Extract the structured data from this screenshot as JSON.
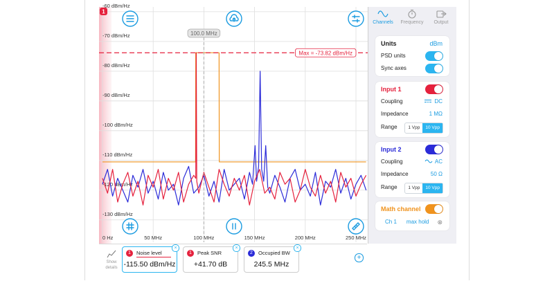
{
  "chart_data": {
    "type": "line",
    "channel_badge": "1",
    "xlim": [
      -3.4,
      261.6
    ],
    "ylim": [
      -137.5,
      -58.4
    ],
    "xticks": [
      {
        "value": 0,
        "label": "0 Hz"
      },
      {
        "value": 50,
        "label": "50 MHz"
      },
      {
        "value": 100,
        "label": "100 MHz"
      },
      {
        "value": 150,
        "label": "150 MHz"
      },
      {
        "value": 200,
        "label": "200 MHz"
      },
      {
        "value": 250,
        "label": "250 MHz"
      }
    ],
    "yticks": [
      {
        "value": -60,
        "label": "-60 dBm/Hz"
      },
      {
        "value": -70,
        "label": "-70 dBm/Hz"
      },
      {
        "value": -80,
        "label": "-80 dBm/Hz"
      },
      {
        "value": -90,
        "label": "-90 dBm/Hz"
      },
      {
        "value": -100,
        "label": "-100 dBm/Hz"
      },
      {
        "value": -110,
        "label": "-110 dBm/Hz"
      },
      {
        "value": -120,
        "label": "-120 dBm/Hz"
      },
      {
        "value": -130,
        "label": "-130 dBm/Hz"
      }
    ],
    "grid": true,
    "series": [
      {
        "color": "#f0931e",
        "x": [
          0,
          91.8,
          92,
          115,
          115.2,
          260
        ],
        "values": [
          -110.5,
          -110.5,
          -73.8,
          -73.8,
          -110.5,
          -110.5
        ]
      },
      {
        "color": "#2b2bd8",
        "x": [
          0,
          5,
          10,
          15,
          20,
          25,
          30,
          35,
          40,
          45,
          50,
          55,
          60,
          65,
          70,
          75,
          80,
          85,
          90,
          95,
          100,
          105,
          110,
          115,
          120,
          125,
          130,
          135,
          140,
          145,
          148,
          150.5,
          152,
          154,
          155.5,
          157,
          159,
          161,
          163,
          165,
          170,
          175,
          180,
          185,
          190,
          195,
          200,
          205,
          210,
          215,
          220,
          225,
          230,
          235,
          240,
          245,
          250,
          255,
          260
        ],
        "values": [
          -118,
          -113,
          -122,
          -116,
          -120,
          -124,
          -115,
          -119,
          -113,
          -121,
          -117,
          -123,
          -114,
          -120,
          -118,
          -125,
          -116,
          -112,
          -121,
          -119,
          -115,
          -122,
          -117,
          -124,
          -113,
          -120,
          -118,
          -116,
          -123,
          -114,
          -118,
          -105,
          -117,
          -112,
          -80,
          -113,
          -117,
          -105,
          -119,
          -121,
          -115,
          -119,
          -124,
          -116,
          -113,
          -120,
          -118,
          -122,
          -114,
          -125,
          -117,
          -119,
          -113,
          -121,
          -116,
          -123,
          -118,
          -115,
          -120
        ]
      },
      {
        "color": "#e5213d",
        "x": [
          0,
          5,
          10,
          15,
          20,
          25,
          30,
          35,
          40,
          45,
          50,
          55,
          60,
          65,
          70,
          75,
          80,
          85,
          90,
          92,
          92.5,
          93,
          95,
          100,
          105,
          110,
          115,
          120,
          125,
          130,
          135,
          140,
          145,
          150,
          155,
          160,
          165,
          170,
          175,
          180,
          185,
          190,
          195,
          200,
          205,
          210,
          215,
          220,
          225,
          230,
          235,
          240,
          245,
          250,
          255,
          260
        ],
        "values": [
          -116,
          -121,
          -113,
          -124,
          -118,
          -114,
          -122,
          -117,
          -125,
          -115,
          -119,
          -113,
          -123,
          -116,
          -120,
          -114,
          -124,
          -118,
          -115,
          -116,
          -73.8,
          -117,
          -121,
          -114,
          -119,
          -124,
          -113,
          -118,
          -122,
          -116,
          -120,
          -115,
          -125,
          -117,
          -113,
          -121,
          -119,
          -123,
          -114,
          -118,
          -116,
          -124,
          -120,
          -113,
          -119,
          -122,
          -115,
          -121,
          -117,
          -124,
          -114,
          -119,
          -116,
          -122,
          -118,
          -115
        ]
      }
    ],
    "max_marker": {
      "value": -73.82,
      "label": "Max = -73.82 dBm/Hz",
      "color": "#e5213d"
    },
    "cursor": {
      "value": 100,
      "label": "100.0 MHz"
    }
  },
  "tabs": {
    "active": 0,
    "items": [
      "Channels",
      "Frequency",
      "Output"
    ]
  },
  "units": {
    "title": "Units",
    "value": "dBm",
    "psd_label": "PSD units",
    "psd_on": true,
    "sync_label": "Sync axes",
    "sync_on": true
  },
  "inputs": [
    {
      "title": "Input 1",
      "color": "#e5213d",
      "on": true,
      "coupling_label": "Coupling",
      "coupling": "DC",
      "impedance_label": "Impedance",
      "impedance": "1 MΩ",
      "range_label": "Range",
      "range_options": [
        "1 Vpp",
        "10 Vpp"
      ],
      "range_selected": 1
    },
    {
      "title": "Input 2",
      "color": "#2b2bd8",
      "on": true,
      "coupling_label": "Coupling",
      "coupling": "AC",
      "impedance_label": "Impedance",
      "impedance": "50 Ω",
      "range_label": "Range",
      "range_options": [
        "1 Vpp",
        "10 Vpp"
      ],
      "range_selected": 1
    }
  ],
  "math": {
    "title": "Math channel",
    "color": "#f0931e",
    "on": true,
    "source": "Ch 1",
    "operation": "max hold"
  },
  "show_details": [
    "Show",
    "details"
  ],
  "measurements": [
    {
      "channel": "1",
      "color": "#e5213d",
      "name": "Noise level",
      "value": "-115.50 dBm/Hz",
      "selected": true
    },
    {
      "channel": "1",
      "color": "#e5213d",
      "name": "Peak SNR",
      "value": "+41.70 dB",
      "selected": false
    },
    {
      "channel": "2",
      "color": "#2b2bd8",
      "name": "Occupied BW",
      "value": "245.5 MHz",
      "selected": false
    }
  ]
}
